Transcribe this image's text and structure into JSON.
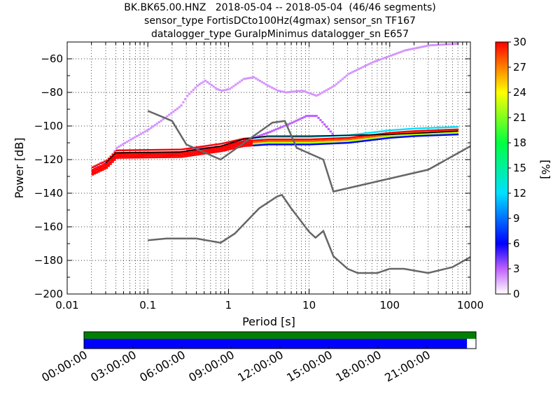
{
  "title_lines": [
    "BK.BK65.00.HNZ   2018-05-04 -- 2018-05-04  (46/46 segments)",
    "sensor_type FortisDCto100Hz(4gmax) sensor_sn TF167",
    "datalogger_type GuralpMinimus datalogger_sn E657"
  ],
  "chart_data": {
    "type": "heatmap",
    "xlabel": "Period [s]",
    "ylabel": "Power [dB]",
    "x_scale": "log",
    "xlim": [
      0.01,
      1000
    ],
    "ylim": [
      -200,
      -50
    ],
    "x_ticks": [
      0.01,
      0.1,
      1,
      10,
      100,
      1000
    ],
    "x_tick_labels": [
      "0.01",
      "0.1",
      "1",
      "10",
      "100",
      "1000"
    ],
    "y_ticks": [
      -200,
      -180,
      -160,
      -140,
      -120,
      -100,
      -80,
      -60
    ],
    "y_tick_labels": [
      "−200",
      "−180",
      "−160",
      "−140",
      "−120",
      "−100",
      "−80",
      "−60"
    ],
    "grid": "dotted",
    "colorbar": {
      "label": "[%]",
      "range": [
        0,
        30
      ],
      "ticks": [
        0,
        3,
        6,
        9,
        12,
        15,
        18,
        21,
        24,
        27,
        30
      ],
      "tick_labels": [
        "0",
        "3",
        "6",
        "9",
        "12",
        "15",
        "18",
        "21",
        "24",
        "27",
        "30"
      ]
    },
    "noise_models": [
      {
        "points": [
          [
            0.1,
            -91
          ],
          [
            0.2,
            -97
          ],
          [
            0.3,
            -111
          ],
          [
            0.8,
            -120
          ],
          [
            3.5,
            -98
          ],
          [
            5,
            -97
          ],
          [
            7,
            -113
          ],
          [
            15,
            -120
          ],
          [
            20,
            -139
          ],
          [
            300,
            -126
          ],
          [
            1000,
            -112
          ]
        ]
      },
      {
        "points": [
          [
            0.1,
            -168
          ],
          [
            0.17,
            -167
          ],
          [
            0.4,
            -167
          ],
          [
            0.8,
            -169.5
          ],
          [
            1.2,
            -164
          ],
          [
            2.4,
            -149
          ],
          [
            4,
            -142
          ],
          [
            4.6,
            -141
          ],
          [
            6,
            -149
          ],
          [
            10,
            -163
          ],
          [
            12,
            -166.5
          ],
          [
            15,
            -162.5
          ],
          [
            20,
            -177.5
          ],
          [
            30,
            -185
          ],
          [
            40,
            -187.5
          ],
          [
            70,
            -187.5
          ],
          [
            100,
            -185
          ],
          [
            150,
            -185
          ],
          [
            300,
            -187.5
          ],
          [
            600,
            -184
          ],
          [
            1000,
            -178
          ]
        ]
      }
    ],
    "psd_bands": [
      {
        "name": "low_percent",
        "percent": 2,
        "points": [
          [
            0.02,
            -126
          ],
          [
            0.025,
            -122
          ],
          [
            0.03,
            -122
          ],
          [
            0.04,
            -113
          ],
          [
            0.06,
            -108
          ],
          [
            0.1,
            -102
          ],
          [
            0.15,
            -96
          ],
          [
            0.25,
            -88
          ],
          [
            0.3,
            -82
          ],
          [
            0.4,
            -76
          ],
          [
            0.5,
            -73
          ],
          [
            0.7,
            -78
          ],
          [
            0.8,
            -79
          ],
          [
            1,
            -78
          ],
          [
            1.5,
            -72
          ],
          [
            2,
            -71
          ],
          [
            3,
            -76
          ],
          [
            4,
            -79
          ],
          [
            5,
            -80
          ],
          [
            8,
            -79
          ],
          [
            12,
            -82
          ],
          [
            20,
            -76
          ],
          [
            30,
            -69
          ],
          [
            60,
            -62
          ],
          [
            150,
            -55
          ],
          [
            300,
            -52
          ],
          [
            700,
            -51
          ]
        ]
      },
      {
        "name": "mid_percent",
        "percent": 3,
        "points": [
          [
            0.3,
            -114
          ],
          [
            1,
            -112
          ],
          [
            3,
            -104
          ],
          [
            6,
            -98
          ],
          [
            9,
            -94
          ],
          [
            12,
            -94
          ],
          [
            15,
            -99
          ],
          [
            20,
            -106
          ]
        ]
      },
      {
        "name": "high_percent",
        "percent": 30,
        "points": [
          [
            0.02,
            -126
          ],
          [
            0.03,
            -122
          ],
          [
            0.04,
            -116
          ],
          [
            0.25,
            -115.5
          ],
          [
            0.8,
            -112
          ],
          [
            1.5,
            -109
          ],
          [
            3,
            -108
          ],
          [
            10,
            -108
          ],
          [
            30,
            -107
          ],
          [
            100,
            -104
          ],
          [
            200,
            -103
          ],
          [
            700,
            -102
          ]
        ]
      }
    ],
    "mode_line": {
      "points": [
        [
          0.03,
          -122
        ],
        [
          0.04,
          -116
        ],
        [
          0.25,
          -115.5
        ],
        [
          0.8,
          -112
        ],
        [
          1.5,
          -108
        ],
        [
          3,
          -106
        ],
        [
          10,
          -106
        ],
        [
          100,
          -105
        ],
        [
          300,
          -104
        ],
        [
          700,
          -103
        ]
      ]
    },
    "timeline": {
      "tick_labels": [
        "00:00:00",
        "03:00:00",
        "06:00:00",
        "09:00:00",
        "12:00:00",
        "15:00:00",
        "18:00:00",
        "21:00:00"
      ],
      "data_coverage_fraction": 1.0,
      "psd_coverage_fraction": 0.977,
      "colors": {
        "data": "#008000",
        "psd": "#0000ff"
      }
    }
  }
}
